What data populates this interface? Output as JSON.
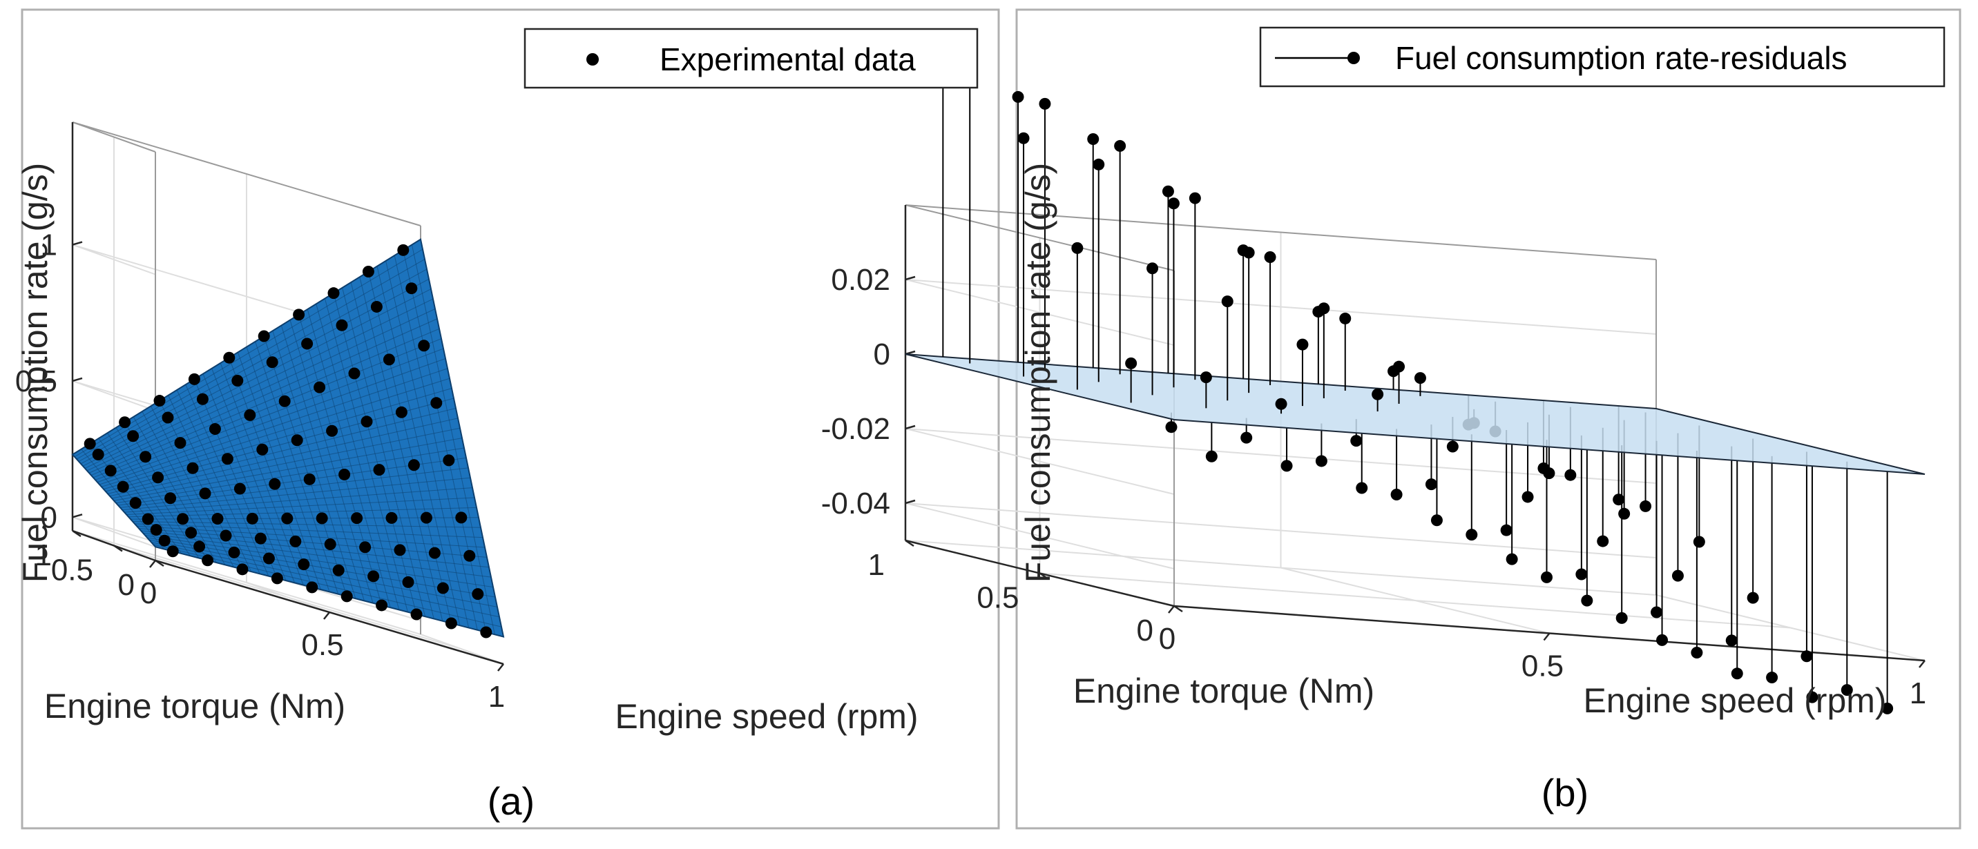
{
  "colors": {
    "surface_a": "#1c73bd",
    "surface_a_mesh": "#0d3f6e",
    "plane_b": "#c7def1",
    "plane_b_edge": "#1b2838",
    "marker": "#000000",
    "axis": "#262626",
    "grid": "#dedede"
  },
  "chart_data": [
    {
      "type": "surface",
      "panel": "a",
      "caption": "(a)",
      "xlabel": "Engine speed (rpm)",
      "ylabel": "Engine torque (Nm)",
      "zlabel": "Fuel consumption rate (g/s)",
      "xlim": [
        0,
        1
      ],
      "ylim": [
        0,
        1
      ],
      "zlim": [
        -0.05,
        1.45
      ],
      "xticks": [
        0,
        0.5,
        1
      ],
      "xtick_labels": [
        "0",
        "0.5",
        "1"
      ],
      "yticks": [
        0,
        0.5,
        1
      ],
      "ytick_labels": [
        "0",
        "0.5",
        "1"
      ],
      "zticks": [
        0,
        0.5,
        1
      ],
      "ztick_labels": [
        "0",
        "0.5",
        "1"
      ],
      "legend": {
        "label": "Experimental data",
        "placement": "top-right"
      },
      "surface_model": {
        "form": "bilinear",
        "corners": {
          "z00": 0.0,
          "z10": 0.05,
          "z01": 0.23,
          "z11": 1.4
        }
      },
      "series": [
        {
          "name": "Experimental data",
          "grid_x": [
            0.05,
            0.15,
            0.25,
            0.35,
            0.45,
            0.55,
            0.65,
            0.75,
            0.85,
            0.95
          ],
          "grid_y": [
            0.0,
            0.1,
            0.2,
            0.3,
            0.45,
            0.6,
            0.75,
            0.9,
            1.0
          ],
          "z_fn": "0.05*x + 0.23*y + 1.12*x*y"
        }
      ]
    },
    {
      "type": "surface-stem",
      "panel": "b",
      "caption": "(b)",
      "xlabel": "Engine speed (rpm)",
      "ylabel": "Engine torque (Nm)",
      "zlabel": "Fuel consumption rate (g/s)",
      "xlim": [
        0,
        1
      ],
      "ylim": [
        0,
        1
      ],
      "zlim": [
        -0.05,
        0.04
      ],
      "xticks": [
        0,
        0.5,
        1
      ],
      "xtick_labels": [
        "0",
        "0.5",
        "1"
      ],
      "yticks": [
        0,
        0.5,
        1
      ],
      "ytick_labels": [
        "0",
        "0.5",
        "1"
      ],
      "zticks": [
        -0.04,
        -0.02,
        0,
        0.02
      ],
      "ztick_labels": [
        "-0.04",
        "-0.02",
        "0",
        "0.02"
      ],
      "legend": {
        "label": "Fuel consumption rate-residuals",
        "placement": "top-right"
      },
      "plane_z": 0,
      "series": [
        {
          "name": "Fuel consumption rate-residuals",
          "grid_x": [
            0.05,
            0.15,
            0.25,
            0.35,
            0.45,
            0.55,
            0.65,
            0.75,
            0.85,
            0.95
          ],
          "grid_y": [
            0.0,
            0.15,
            0.3,
            0.5,
            0.7,
            0.9,
            1.0
          ],
          "residual_fn": "0.04*cos(3.1*x) - 0.045*cos(3.3*y)*(1-0.6*x) - 0.005"
        }
      ]
    }
  ]
}
